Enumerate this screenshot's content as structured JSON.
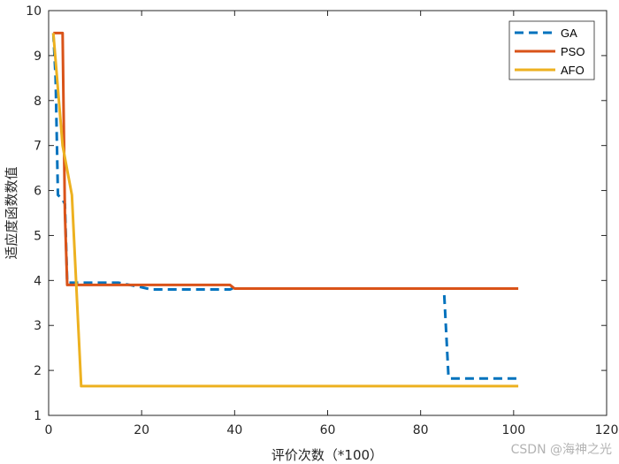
{
  "chart_data": {
    "type": "line",
    "xlabel": "评价次数（*100）",
    "ylabel": "适应度函数数值",
    "xlim": [
      0,
      120
    ],
    "ylim": [
      1,
      10
    ],
    "xticks": [
      0,
      20,
      40,
      60,
      80,
      100,
      120
    ],
    "yticks": [
      1,
      2,
      3,
      4,
      5,
      6,
      7,
      8,
      9,
      10
    ],
    "grid": false,
    "legend_position": "top-right",
    "series": [
      {
        "name": "GA",
        "color": "#0072BD",
        "dash": "dashed",
        "x": [
          1,
          1.5,
          2,
          3,
          3.5,
          4,
          15,
          20,
          22,
          39,
          39.5,
          85,
          86,
          86.5,
          101
        ],
        "y": [
          9.5,
          8.5,
          5.9,
          5.8,
          5.7,
          3.95,
          3.95,
          3.85,
          3.8,
          3.8,
          3.82,
          3.82,
          1.85,
          1.82,
          1.82
        ]
      },
      {
        "name": "PSO",
        "color": "#D95319",
        "dash": "solid",
        "x": [
          1,
          3,
          3.5,
          4,
          39,
          40,
          101
        ],
        "y": [
          9.5,
          9.5,
          5.5,
          3.9,
          3.9,
          3.82,
          3.82
        ]
      },
      {
        "name": "AFO",
        "color": "#EDB120",
        "dash": "solid",
        "x": [
          1,
          3,
          5,
          7,
          101
        ],
        "y": [
          9.5,
          7.0,
          5.9,
          1.65,
          1.65
        ]
      }
    ]
  },
  "watermark": "CSDN @海神之光"
}
